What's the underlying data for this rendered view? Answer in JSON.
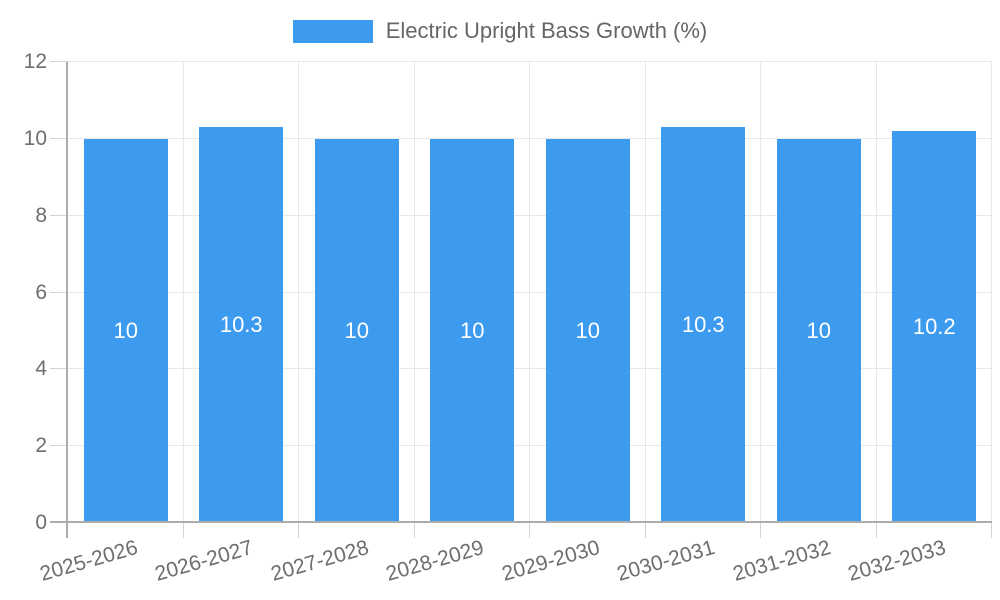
{
  "legend": {
    "label": "Electric Upright Bass Growth (%)"
  },
  "colors": {
    "bar": "#3c9aef",
    "grid": "#e8e8e8",
    "tick": "#d4d4d4",
    "axis": "#acacac",
    "axis_text": "#6e6e6e",
    "value_text": "#ffffff",
    "legend_text": "#666666",
    "background": "#ffffff"
  },
  "chart_data": {
    "type": "bar",
    "title": "Electric Upright Bass Growth (%)",
    "categories": [
      "2025-2026",
      "2026-2027",
      "2027-2028",
      "2028-2029",
      "2029-2030",
      "2030-2031",
      "2031-2032",
      "2032-2033"
    ],
    "values": [
      10,
      10.3,
      10,
      10,
      10,
      10.3,
      10,
      10.2
    ],
    "value_labels": [
      "10",
      "10.3",
      "10",
      "10",
      "10",
      "10.3",
      "10",
      "10.2"
    ],
    "y_tick_labels": [
      "0",
      "2",
      "4",
      "6",
      "8",
      "10",
      "12"
    ],
    "y_ticks": [
      0,
      2,
      4,
      6,
      8,
      10,
      12
    ],
    "ylim": [
      0,
      12
    ],
    "xlabel": "",
    "ylabel": "",
    "grid": true,
    "legend_position": "top",
    "x_tick_rotation_deg": -16
  }
}
